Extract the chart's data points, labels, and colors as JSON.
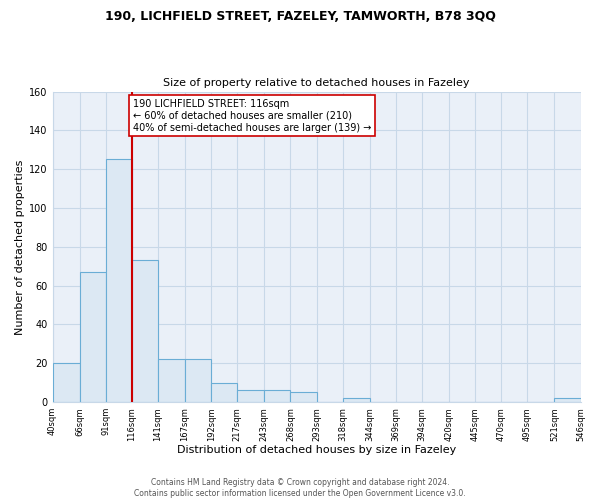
{
  "title_line1": "190, LICHFIELD STREET, FAZELEY, TAMWORTH, B78 3QQ",
  "title_line2": "Size of property relative to detached houses in Fazeley",
  "xlabel": "Distribution of detached houses by size in Fazeley",
  "ylabel": "Number of detached properties",
  "bar_edges": [
    40,
    66,
    91,
    116,
    141,
    167,
    192,
    217,
    243,
    268,
    293,
    318,
    344,
    369,
    394,
    420,
    445,
    470,
    495,
    521,
    546
  ],
  "bar_heights": [
    20,
    67,
    125,
    73,
    22,
    22,
    10,
    6,
    6,
    5,
    0,
    2,
    0,
    0,
    0,
    0,
    0,
    0,
    0,
    2
  ],
  "bar_color": "#dce8f3",
  "bar_edge_color": "#6aadd5",
  "vline_x": 116,
  "vline_color": "#cc0000",
  "annotation_text": "190 LICHFIELD STREET: 116sqm\n← 60% of detached houses are smaller (210)\n40% of semi-detached houses are larger (139) →",
  "annotation_box_color": "#ffffff",
  "annotation_box_edge": "#cc0000",
  "ylim": [
    0,
    160
  ],
  "yticks": [
    0,
    20,
    40,
    60,
    80,
    100,
    120,
    140,
    160
  ],
  "tick_labels": [
    "40sqm",
    "66sqm",
    "91sqm",
    "116sqm",
    "141sqm",
    "167sqm",
    "192sqm",
    "217sqm",
    "243sqm",
    "268sqm",
    "293sqm",
    "318sqm",
    "344sqm",
    "369sqm",
    "394sqm",
    "420sqm",
    "445sqm",
    "470sqm",
    "495sqm",
    "521sqm",
    "546sqm"
  ],
  "footer_line1": "Contains HM Land Registry data © Crown copyright and database right 2024.",
  "footer_line2": "Contains public sector information licensed under the Open Government Licence v3.0.",
  "background_color": "#ffffff",
  "grid_color": "#c8d8e8",
  "plot_bg_color": "#eaf0f8"
}
